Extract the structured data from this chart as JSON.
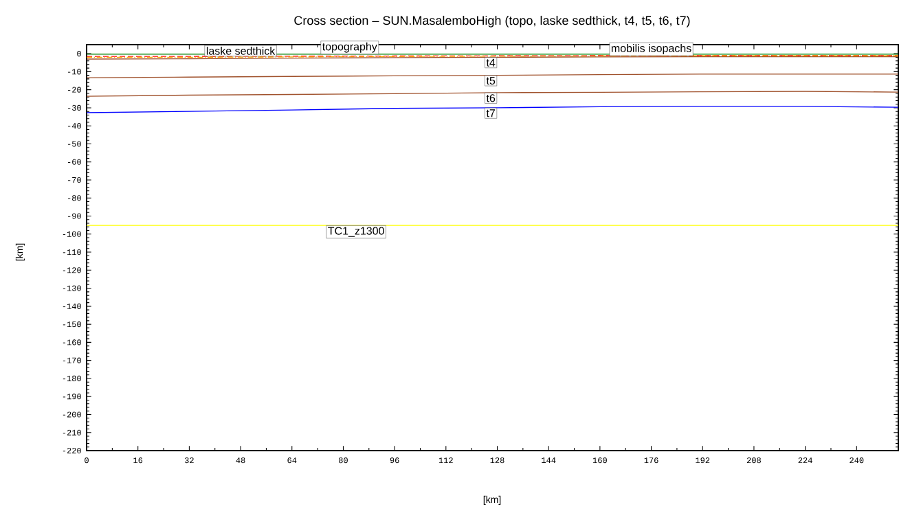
{
  "chart_data": {
    "type": "line",
    "title": "Cross section – SUN.MasalemboHigh (topo, laske sedthick, t4, t5, t6, t7)",
    "xlabel": "[km]",
    "ylabel": "[km]",
    "xlim": [
      0,
      253
    ],
    "ylim": [
      -220,
      5
    ],
    "xticks": [
      0,
      16,
      32,
      48,
      64,
      80,
      96,
      112,
      128,
      144,
      160,
      176,
      192,
      208,
      224,
      240
    ],
    "yticks": [
      -220,
      -210,
      -200,
      -190,
      -180,
      -170,
      -160,
      -150,
      -140,
      -130,
      -120,
      -110,
      -100,
      -90,
      -80,
      -70,
      -60,
      -50,
      -40,
      -30,
      -20,
      -10,
      0
    ],
    "grid": false,
    "series": [
      {
        "color": "#008000",
        "line_style": "solid",
        "x": [
          0,
          32,
          64,
          96,
          128,
          160,
          192,
          224,
          253
        ],
        "values": [
          -0.3,
          -0.3,
          -0.3,
          -0.3,
          -0.3,
          -0.3,
          -0.3,
          -0.3,
          -0.3
        ]
      },
      {
        "color": "#ff0000",
        "line_style": "dashed",
        "x": [
          0,
          32,
          64,
          96,
          128,
          160,
          192,
          224,
          253
        ],
        "values": [
          -1.5,
          -1.5,
          -1.4,
          -1.3,
          -1.2,
          -1.1,
          -1.1,
          -1.1,
          -1.1
        ]
      },
      {
        "color": "#ffa500",
        "line_style": "dashdot",
        "x": [
          0,
          32,
          64,
          96,
          128,
          160,
          192,
          224,
          253
        ],
        "values": [
          -2,
          -2,
          -1.8,
          -1.6,
          -1.4,
          -1.3,
          -1.2,
          -1.2,
          -1.2
        ]
      },
      {
        "color": "#a0522d",
        "line_style": "solid",
        "x": [
          0,
          32,
          64,
          96,
          128,
          160,
          192,
          224,
          253
        ],
        "values": [
          -3,
          -2.8,
          -2.5,
          -2.2,
          -2,
          -1.8,
          -1.7,
          -1.7,
          -1.7
        ]
      },
      {
        "color": "#a0522d",
        "line_style": "solid",
        "x": [
          0,
          32,
          64,
          96,
          128,
          160,
          192,
          224,
          253
        ],
        "values": [
          -13.3,
          -13,
          -12.6,
          -12.3,
          -12,
          -11.6,
          -11.3,
          -11.3,
          -11.3
        ]
      },
      {
        "color": "#a0522d",
        "line_style": "solid",
        "x": [
          0,
          32,
          64,
          96,
          128,
          160,
          192,
          224,
          253
        ],
        "values": [
          -23.6,
          -23,
          -22.6,
          -22.2,
          -21.6,
          -21.4,
          -21.1,
          -20.9,
          -21.3
        ]
      },
      {
        "color": "#0000ff",
        "line_style": "solid",
        "x": [
          0,
          32,
          64,
          96,
          128,
          160,
          192,
          224,
          253
        ],
        "values": [
          -32.7,
          -32,
          -31.2,
          -30.3,
          -30,
          -29.4,
          -29.2,
          -29.2,
          -29.7
        ]
      },
      {
        "color": "#ffff00",
        "line_style": "solid",
        "x": [
          0,
          253
        ],
        "values": [
          -95.2,
          -95.2
        ]
      }
    ],
    "annotations": [
      {
        "text": "topography",
        "x": 82,
        "y": -0.3
      },
      {
        "text": "laske sedthick",
        "x": 48,
        "y": -1.5
      },
      {
        "text": "mobilis isopachs",
        "x": 176,
        "y": -1.2
      },
      {
        "text": "t4",
        "x": 126,
        "y": -2
      },
      {
        "text": "t5",
        "x": 126,
        "y": -12
      },
      {
        "text": "t6",
        "x": 126,
        "y": -21.6
      },
      {
        "text": "t7",
        "x": 126,
        "y": -30
      },
      {
        "text": "TC1_z1300",
        "x": 84,
        "y": -95.2
      }
    ]
  }
}
